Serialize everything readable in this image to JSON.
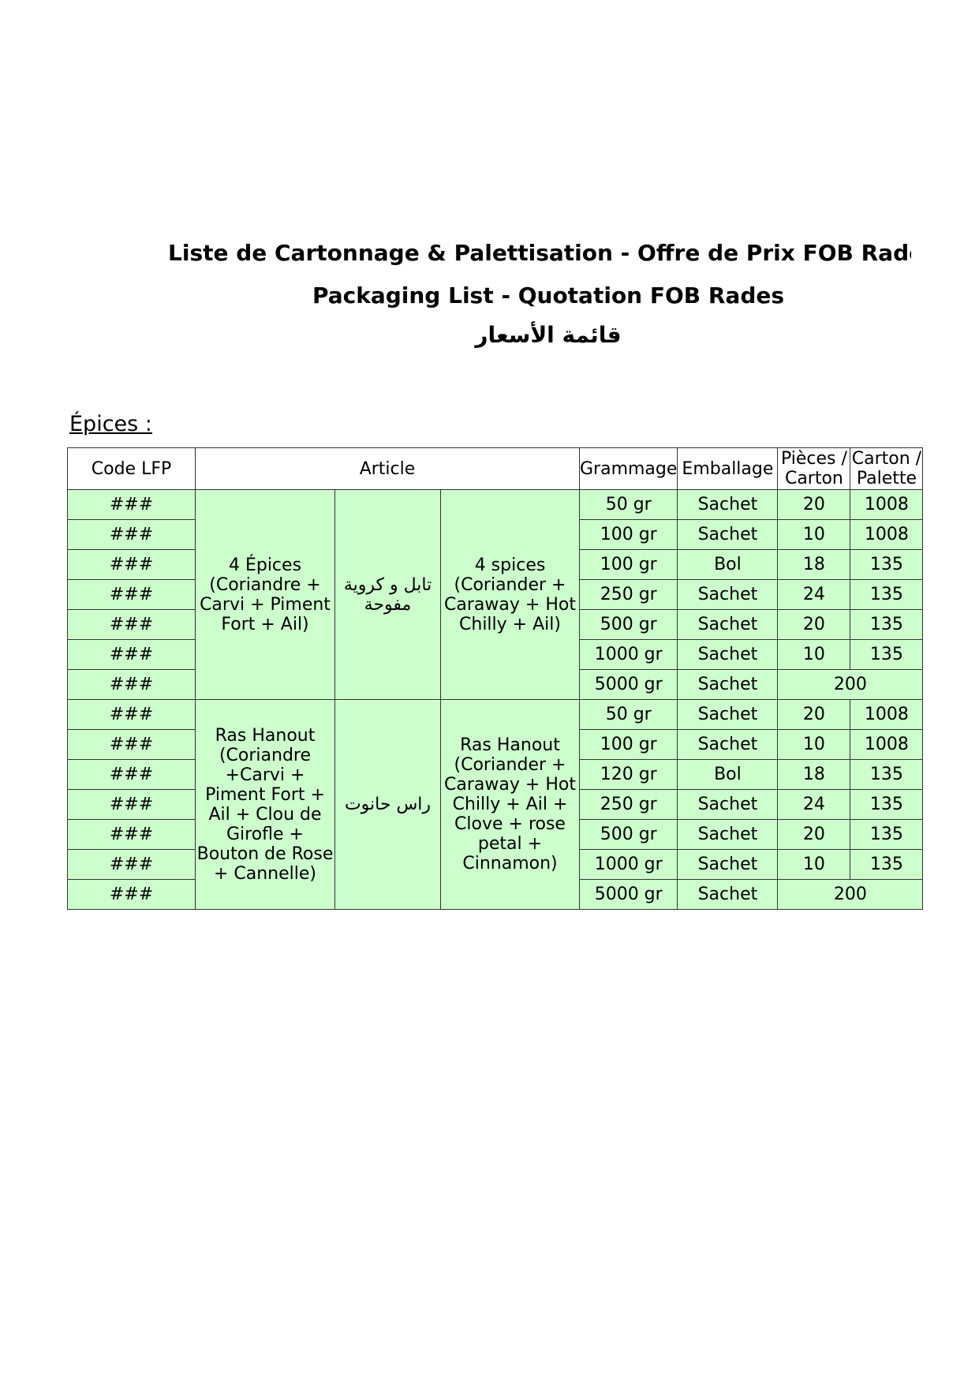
{
  "titles": {
    "fr": "Liste de Cartonnage & Palettisation - Offre de Prix FOB Rades",
    "en": "Packaging List - Quotation FOB Rades",
    "ar": "قائمة الأسعار"
  },
  "section": "Épices :",
  "headers": {
    "code": "Code LFP",
    "article": "Article",
    "grammage": "Grammage",
    "emballage": "Emballage",
    "pieces": "Pièces / Carton",
    "carton": "Carton / Palette"
  },
  "groups": [
    {
      "fr": "4 Épices (Coriandre + Carvi + Piment Fort + Ail)",
      "ar": "تابل و كروية مفوحة",
      "en": "4 spices (Coriander + Caraway + Hot Chilly + Ail)",
      "rows": [
        {
          "code": "###",
          "grammage": "50 gr",
          "emballage": "Sachet",
          "pieces": "20",
          "carton": "1008"
        },
        {
          "code": "###",
          "grammage": "100 gr",
          "emballage": "Sachet",
          "pieces": "10",
          "carton": "1008"
        },
        {
          "code": "###",
          "grammage": "100 gr",
          "emballage": "Bol",
          "pieces": "18",
          "carton": "135"
        },
        {
          "code": "###",
          "grammage": "250 gr",
          "emballage": "Sachet",
          "pieces": "24",
          "carton": "135"
        },
        {
          "code": "###",
          "grammage": "500 gr",
          "emballage": "Sachet",
          "pieces": "20",
          "carton": "135"
        },
        {
          "code": "###",
          "grammage": "1000 gr",
          "emballage": "Sachet",
          "pieces": "10",
          "carton": "135"
        },
        {
          "code": "###",
          "grammage": "5000 gr",
          "emballage": "Sachet",
          "merged": "200"
        }
      ]
    },
    {
      "fr": "Ras Hanout (Coriandre +Carvi + Piment Fort + Ail + Clou de Girofle + Bouton de Rose + Cannelle)",
      "ar": "راس حانوت",
      "en": "Ras Hanout (Coriander + Caraway + Hot Chilly + Ail + Clove +  rose petal + Cinnamon)",
      "rows": [
        {
          "code": "###",
          "grammage": "50 gr",
          "emballage": "Sachet",
          "pieces": "20",
          "carton": "1008"
        },
        {
          "code": "###",
          "grammage": "100 gr",
          "emballage": "Sachet",
          "pieces": "10",
          "carton": "1008"
        },
        {
          "code": "###",
          "grammage": "120 gr",
          "emballage": "Bol",
          "pieces": "18",
          "carton": "135"
        },
        {
          "code": "###",
          "grammage": "250 gr",
          "emballage": "Sachet",
          "pieces": "24",
          "carton": "135"
        },
        {
          "code": "###",
          "grammage": "500 gr",
          "emballage": "Sachet",
          "pieces": "20",
          "carton": "135"
        },
        {
          "code": "###",
          "grammage": "1000 gr",
          "emballage": "Sachet",
          "pieces": "10",
          "carton": "135"
        },
        {
          "code": "###",
          "grammage": "5000 gr",
          "emballage": "Sachet",
          "merged": "200"
        }
      ]
    }
  ]
}
